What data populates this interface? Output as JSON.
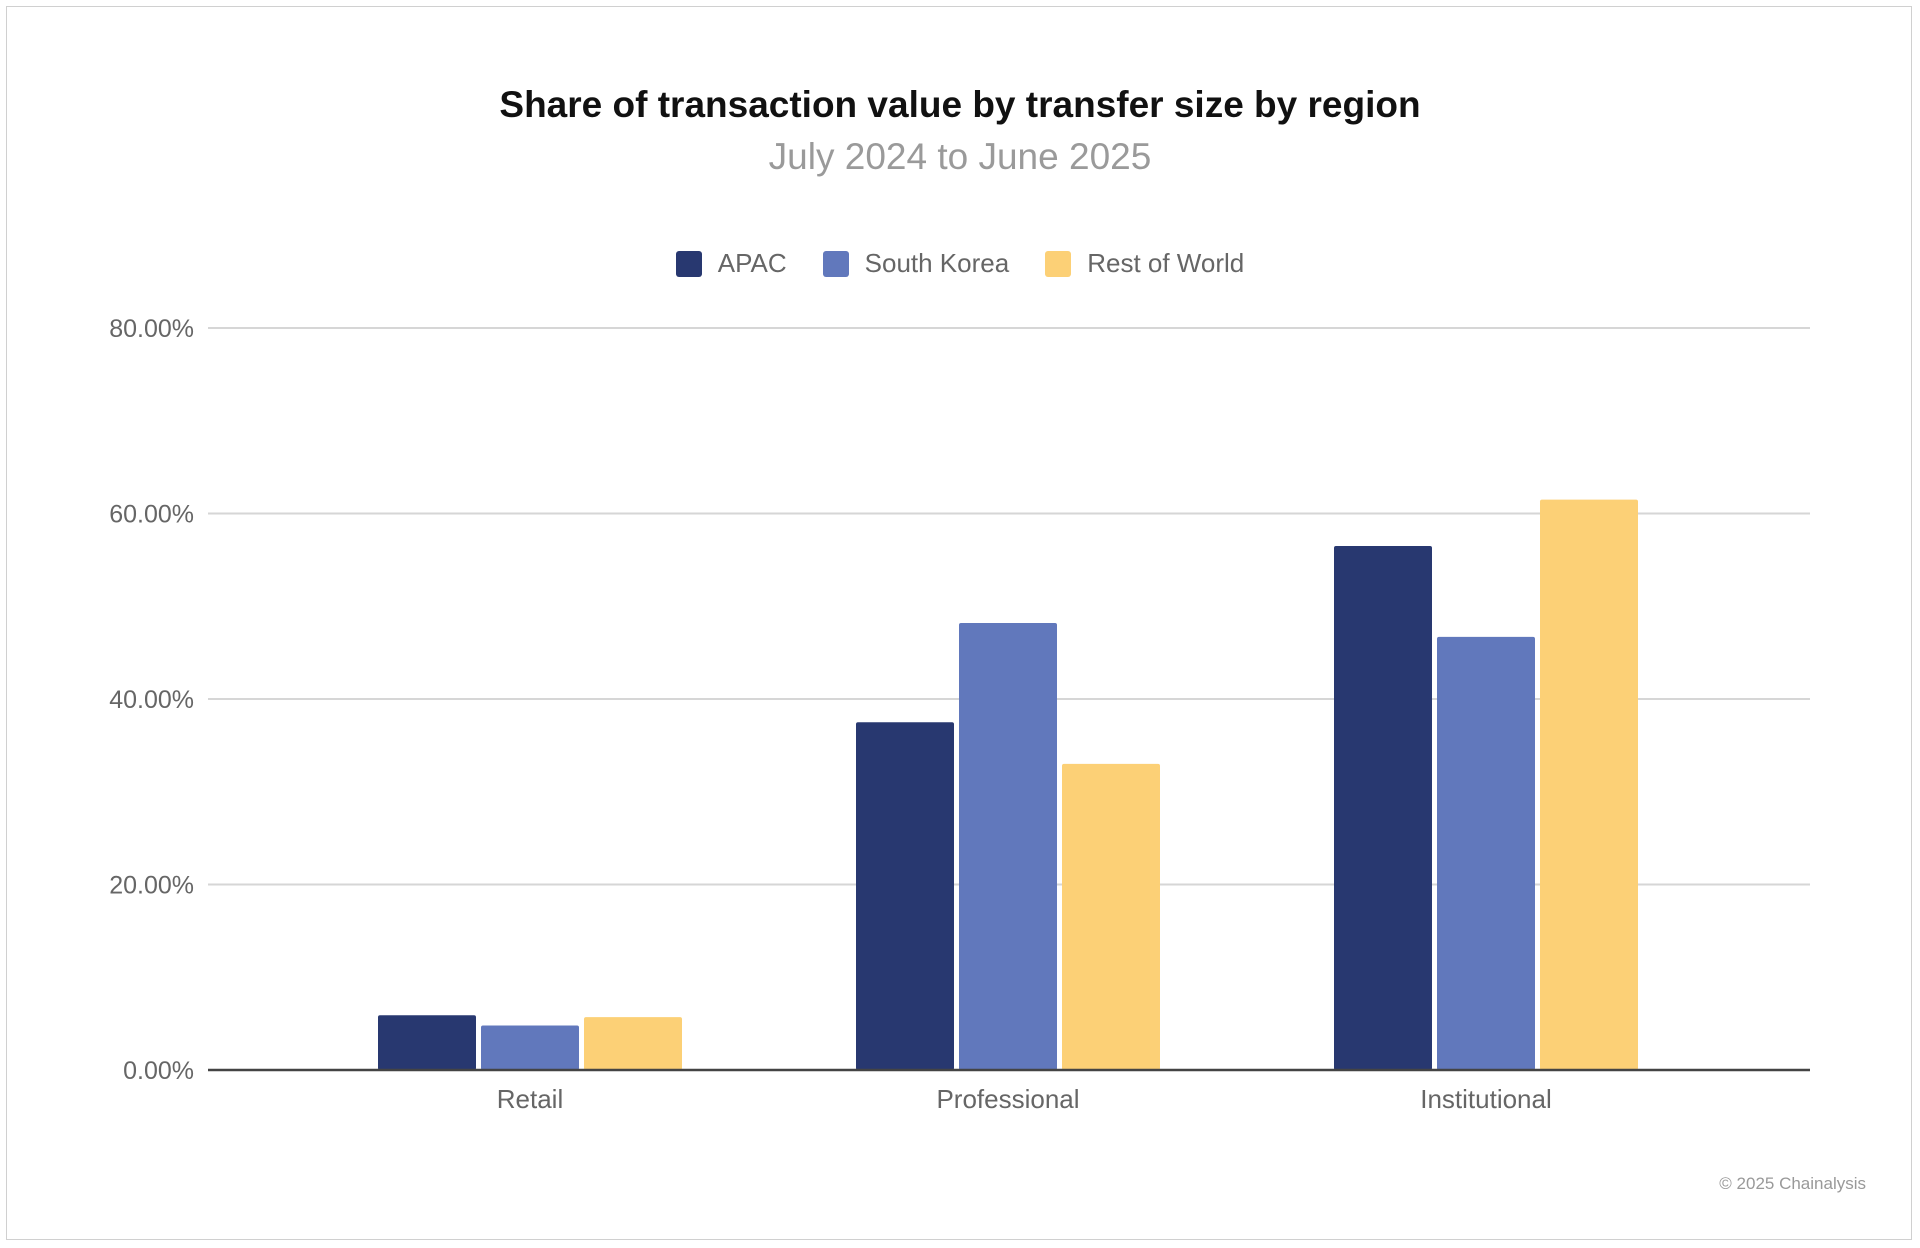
{
  "chart_data": {
    "type": "bar",
    "title": "Share of transaction value by transfer size by region",
    "subtitle": "July 2024 to June 2025",
    "categories": [
      "Retail",
      "Professional",
      "Institutional"
    ],
    "series": [
      {
        "name": "APAC",
        "color": "#283870",
        "values": [
          5.9,
          37.5,
          56.5
        ]
      },
      {
        "name": "South Korea",
        "color": "#6178bc",
        "values": [
          4.8,
          48.2,
          46.7
        ]
      },
      {
        "name": "Rest of World",
        "color": "#fcd076",
        "values": [
          5.7,
          33.0,
          61.5
        ]
      }
    ],
    "ylim": [
      0,
      80
    ],
    "yticks": [
      "0.00%",
      "20.00%",
      "40.00%",
      "60.00%",
      "80.00%"
    ],
    "ytick_values": [
      0,
      20,
      40,
      60,
      80
    ],
    "grid": true,
    "legend_position": "top",
    "xlabel": "",
    "ylabel": ""
  },
  "footer": {
    "copyright": "© 2025 Chainalysis"
  }
}
